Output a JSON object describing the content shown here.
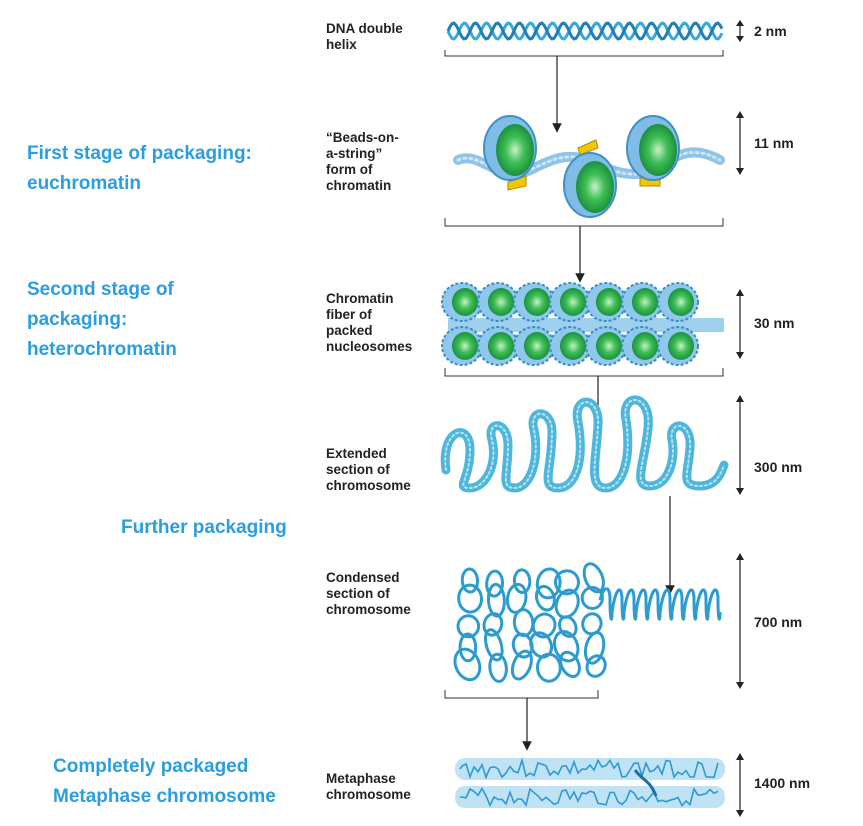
{
  "side_labels": {
    "stage1": "First stage of packaging:\neuchromatin",
    "stage2": "Second stage of\npackaging:\nheterochromatin",
    "further": "Further packaging",
    "complete": "Completely packaged\nMetaphase chromosome"
  },
  "levels": [
    {
      "label": "DNA double\nhelix",
      "size": "2 nm"
    },
    {
      "label": "“Beads-on-\na-string”\nform of\nchromatin",
      "size": "11 nm"
    },
    {
      "label": "Chromatin\nfiber of\npacked\nnucleosomes",
      "size": "30 nm"
    },
    {
      "label": "Extended\nsection of\nchromosome",
      "size": "300 nm"
    },
    {
      "label": "Condensed\nsection of\nchromosome",
      "size": "700 nm"
    },
    {
      "label": "Metaphase\nchromosome",
      "size": "1400 nm"
    }
  ],
  "colors": {
    "side_text": "#2a9ee0",
    "dna": "#3aa7d8",
    "histone_green": "#22a845",
    "linker_yellow": "#f2c600"
  }
}
